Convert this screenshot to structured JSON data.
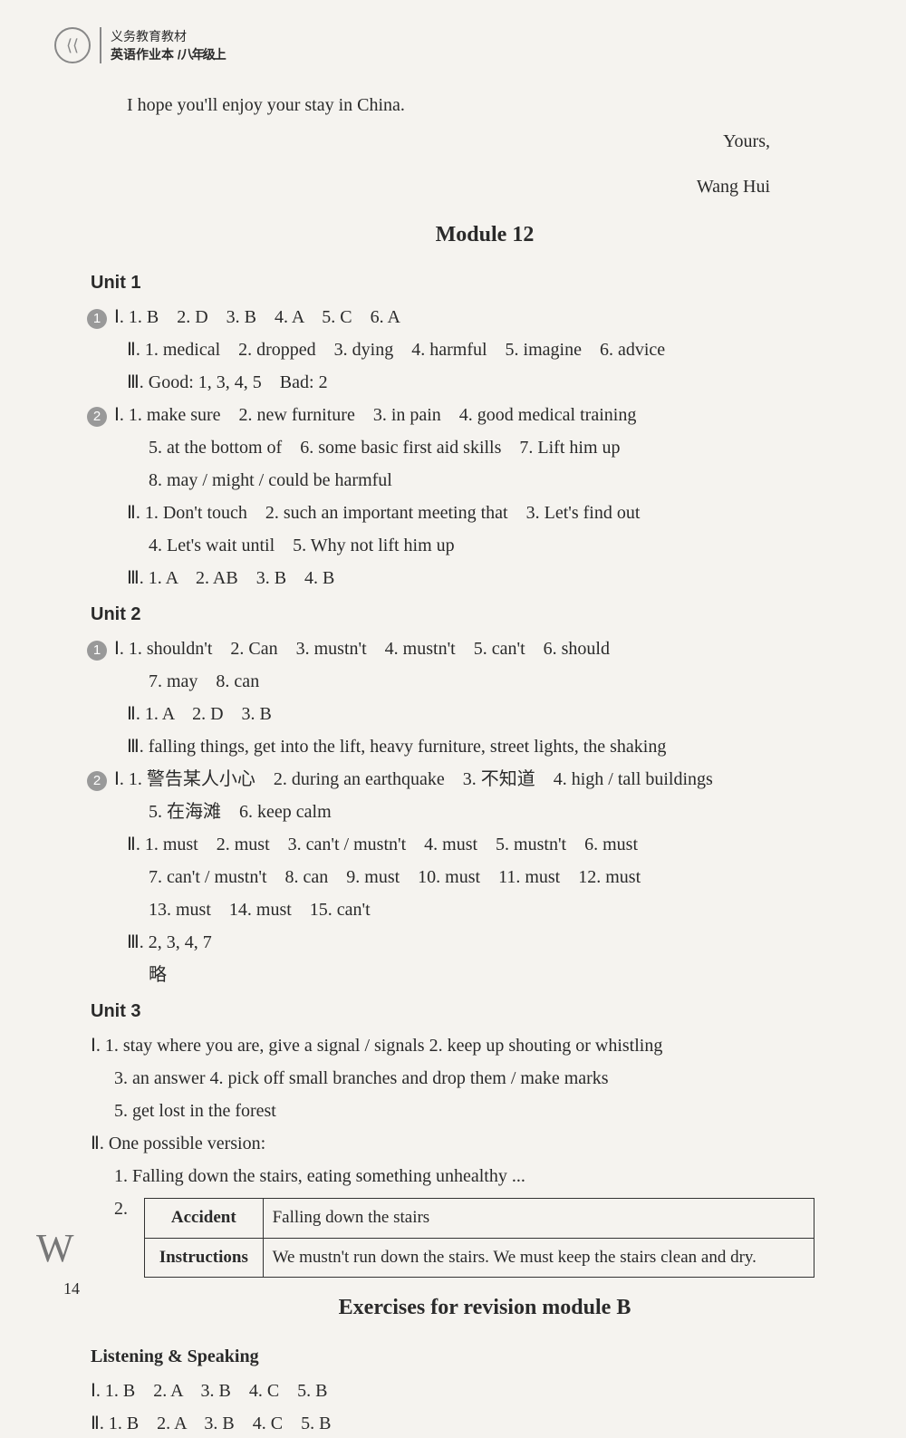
{
  "header": {
    "line1": "义务教育教材",
    "line2_a": "英语作业本 /",
    "line2_b": "八年级上"
  },
  "top_sentence": "I hope you'll enjoy your stay in China.",
  "signature1": "Yours,",
  "signature2": "Wang Hui",
  "module_title": "Module 12",
  "unit1_title": "Unit 1",
  "u1_b1_I": "Ⅰ. 1. B    2. D    3. B    4. A    5. C    6. A",
  "u1_b1_II": "Ⅱ. 1. medical    2. dropped    3. dying    4. harmful    5. imagine    6. advice",
  "u1_b1_III": "Ⅲ. Good: 1, 3, 4, 5    Bad: 2",
  "u1_b2_I_1": "Ⅰ. 1. make sure    2. new furniture    3. in pain    4. good medical training",
  "u1_b2_I_2": "5. at the bottom of    6. some basic first aid skills    7. Lift him up",
  "u1_b2_I_3": "8. may / might / could be harmful",
  "u1_b2_II_1": "Ⅱ. 1. Don't touch    2. such an important meeting that    3. Let's find out",
  "u1_b2_II_2": "4. Let's wait until    5. Why not lift him up",
  "u1_b2_III": "Ⅲ. 1. A    2. AB    3. B    4. B",
  "unit2_title": "Unit 2",
  "u2_b1_I_1": "Ⅰ. 1. shouldn't    2. Can    3. mustn't    4. mustn't    5. can't    6. should",
  "u2_b1_I_2": "7. may    8. can",
  "u2_b1_II": "Ⅱ. 1. A    2. D    3. B",
  "u2_b1_III": "Ⅲ. falling things, get into the lift, heavy furniture, street lights, the shaking",
  "u2_b2_I_1": "Ⅰ. 1. 警告某人小心    2. during an earthquake    3. 不知道    4. high / tall buildings",
  "u2_b2_I_2": "5. 在海滩    6. keep calm",
  "u2_b2_II_1": "Ⅱ. 1. must    2. must    3. can't / mustn't    4. must    5. mustn't    6. must",
  "u2_b2_II_2": "7. can't / mustn't    8. can    9. must    10. must    11. must    12. must",
  "u2_b2_II_3": "13. must    14. must    15. can't",
  "u2_b2_III": "Ⅲ. 2, 3, 4, 7",
  "u2_b2_lue": "略",
  "unit3_title": "Unit 3",
  "u3_I_1": "Ⅰ. 1. stay where you are, give a signal / signals    2. keep up shouting or whistling",
  "u3_I_2": "3. an answer    4. pick off small branches and drop them / make marks",
  "u3_I_3": "5. get lost in the forest",
  "u3_II_1": "Ⅱ. One possible version:",
  "u3_II_2": "1. Falling down the stairs, eating something unhealthy ...",
  "u3_II_3": "2.",
  "table": {
    "h1": "Accident",
    "c1": "Falling down the stairs",
    "h2": "Instructions",
    "c2": "We mustn't run down the stairs. We must keep the stairs clean and dry."
  },
  "exercises_title": "Exercises for revision module B",
  "listening_title": "Listening & Speaking",
  "ls_I": "Ⅰ. 1. B    2. A    3. B    4. C    5. B",
  "ls_II": "Ⅱ. 1. B    2. A    3. B    4. C    5. B",
  "page_number": "14",
  "watermark": "W"
}
